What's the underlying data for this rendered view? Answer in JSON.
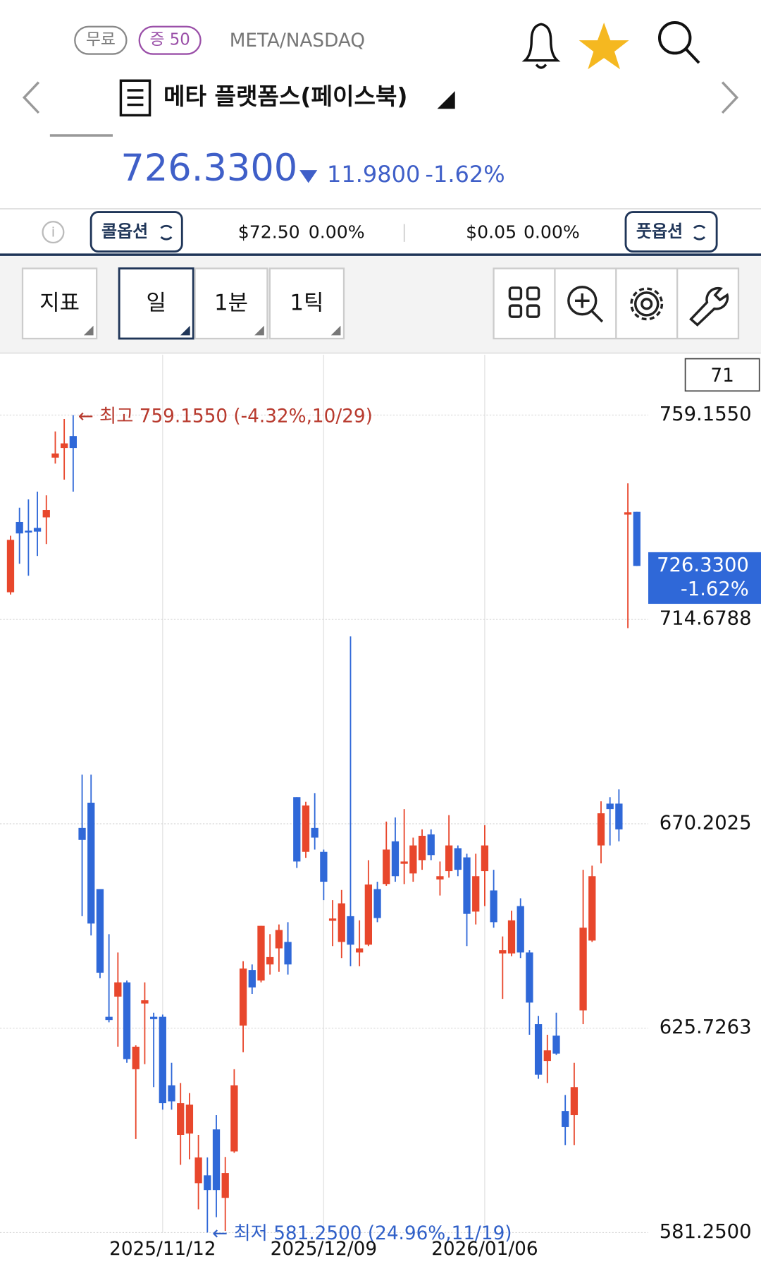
{
  "header": {
    "badges": [
      "무료",
      "증 50"
    ],
    "symbol": "META/NASDAQ",
    "title": "메타 플랫폼스(페이스북)",
    "price": "726.3300",
    "change": "11.9800",
    "change_pct": "-1.62%"
  },
  "option_bar": {
    "call": "콜옵션",
    "call_price": "$72.50",
    "call_pct": "0.00%",
    "put_price": "$0.05",
    "put_pct": "0.00%",
    "put": "풋옵션"
  },
  "toolbar": {
    "buttons": [
      "지표",
      "일",
      "1분",
      "1틱"
    ]
  },
  "chart_data": {
    "type": "candlestick",
    "x": [
      null,
      null,
      null,
      null,
      null,
      null,
      null,
      null,
      null,
      null,
      null,
      null,
      null,
      null,
      null,
      null,
      null,
      "2025/11/12",
      null,
      null,
      null,
      null,
      null,
      null,
      null,
      null,
      null,
      null,
      null,
      null,
      null,
      null,
      null,
      null,
      null,
      "2025/12/09",
      null,
      null,
      null,
      null,
      null,
      null,
      null,
      null,
      null,
      null,
      null,
      null,
      null,
      null,
      null,
      null,
      null,
      "2026/01/06",
      null,
      null,
      null,
      null,
      null,
      null,
      null,
      null,
      null,
      null,
      null,
      null,
      null,
      null,
      null,
      null,
      null
    ],
    "open": [
      720.6,
      735.9,
      734.0,
      734.6,
      736.9,
      749.9,
      752.0,
      754.6,
      669.3,
      674.8,
      656.0,
      628.2,
      632.6,
      635.7,
      616.8,
      631.1,
      628.2,
      628.2,
      613.3,
      602.5,
      602.8,
      592.0,
      593.7,
      603.7,
      588.8,
      598.9,
      626.3,
      638.4,
      636.1,
      639.6,
      643.1,
      644.5,
      676.0,
      664.1,
      669.3,
      664.1,
      649.1,
      644.5,
      650.1,
      642.2,
      643.9,
      656.0,
      657.1,
      666.4,
      661.5,
      659.4,
      662.3,
      667.9,
      658.1,
      659.9,
      664.9,
      662.9,
      651.1,
      659.9,
      655.7,
      642.0,
      642.0,
      652.3,
      642.2,
      626.6,
      618.6,
      624.1,
      607.7,
      606.8,
      629.6,
      644.8,
      665.5,
      674.6,
      674.6,
      737.5,
      738.1
    ],
    "high": [
      732.9,
      739.0,
      740.8,
      742.5,
      741.7,
      755.6,
      758.3,
      759.155,
      680.9,
      680.9,
      656.0,
      646.2,
      642.2,
      636.1,
      622.0,
      635.7,
      629.1,
      628.7,
      618.2,
      613.8,
      611.6,
      602.5,
      597.6,
      606.8,
      597.7,
      616.8,
      640.3,
      639.6,
      648.0,
      646.2,
      648.3,
      648.8,
      676.0,
      675.0,
      676.9,
      664.6,
      653.6,
      655.8,
      711.0,
      649.2,
      662.3,
      657.6,
      670.7,
      671.6,
      673.4,
      667.2,
      669.0,
      669.0,
      662.0,
      672.1,
      665.5,
      663.7,
      663.7,
      669.9,
      660.2,
      645.7,
      651.3,
      654.0,
      642.7,
      628.4,
      624.3,
      629.1,
      611.2,
      618.2,
      660.2,
      661.1,
      675.1,
      676.0,
      677.7,
      744.3,
      738.1
    ],
    "low": [
      720.1,
      726.8,
      724.2,
      728.5,
      731.1,
      748.6,
      745.1,
      742.5,
      650.1,
      645.9,
      636.6,
      627.0,
      621.7,
      618.2,
      601.6,
      617.9,
      612.9,
      608.0,
      608.0,
      596.0,
      597.2,
      586.3,
      581.25,
      584.6,
      581.6,
      598.6,
      620.5,
      633.2,
      635.7,
      637.4,
      638.0,
      637.4,
      660.6,
      662.8,
      664.6,
      653.6,
      643.6,
      641.0,
      639.2,
      639.2,
      643.6,
      648.8,
      656.7,
      657.6,
      657.1,
      657.6,
      660.2,
      662.3,
      654.6,
      658.5,
      658.8,
      643.6,
      648.3,
      652.3,
      647.6,
      632.1,
      641.4,
      641.0,
      624.3,
      614.7,
      613.8,
      619.9,
      600.3,
      600.3,
      626.6,
      644.5,
      661.6,
      665.5,
      666.4,
      712.8,
      726.33
    ],
    "close": [
      732.0,
      733.4,
      733.6,
      733.8,
      738.5,
      750.8,
      753.0,
      752.0,
      666.7,
      648.5,
      637.8,
      627.5,
      635.7,
      619.0,
      621.7,
      631.8,
      627.7,
      609.4,
      609.8,
      609.4,
      609.1,
      597.6,
      590.5,
      590.5,
      594.2,
      613.3,
      638.7,
      634.6,
      648.0,
      641.2,
      647.1,
      639.6,
      662.0,
      674.2,
      667.2,
      657.6,
      649.6,
      652.9,
      643.9,
      643.1,
      657.0,
      649.7,
      664.6,
      658.8,
      662.0,
      665.5,
      667.6,
      663.4,
      658.8,
      665.5,
      660.2,
      650.6,
      658.8,
      665.5,
      648.8,
      642.7,
      649.2,
      642.2,
      631.3,
      615.6,
      620.9,
      620.2,
      604.2,
      612.9,
      647.6,
      658.8,
      672.5,
      673.4,
      669.0,
      738.0,
      726.33
    ],
    "up_color": "#e8472c",
    "down_color": "#2f68d8",
    "ylim": [
      581.25,
      772.3
    ],
    "yticks": [
      {
        "value": 759.155,
        "label": "759.1550"
      },
      714.6788,
      670.2025,
      625.7263,
      {
        "value": 581.25,
        "label": "581.2500"
      }
    ],
    "grid": true,
    "visible_count": 71,
    "high_label": "← 최고 759.1550 (-4.32%,10/29)",
    "low_label": "← 최저 581.2500 (24.96%,11/19)",
    "last_label": {
      "value": 726.33,
      "label": "726.3300"
    },
    "last_change": "-1.62%"
  }
}
